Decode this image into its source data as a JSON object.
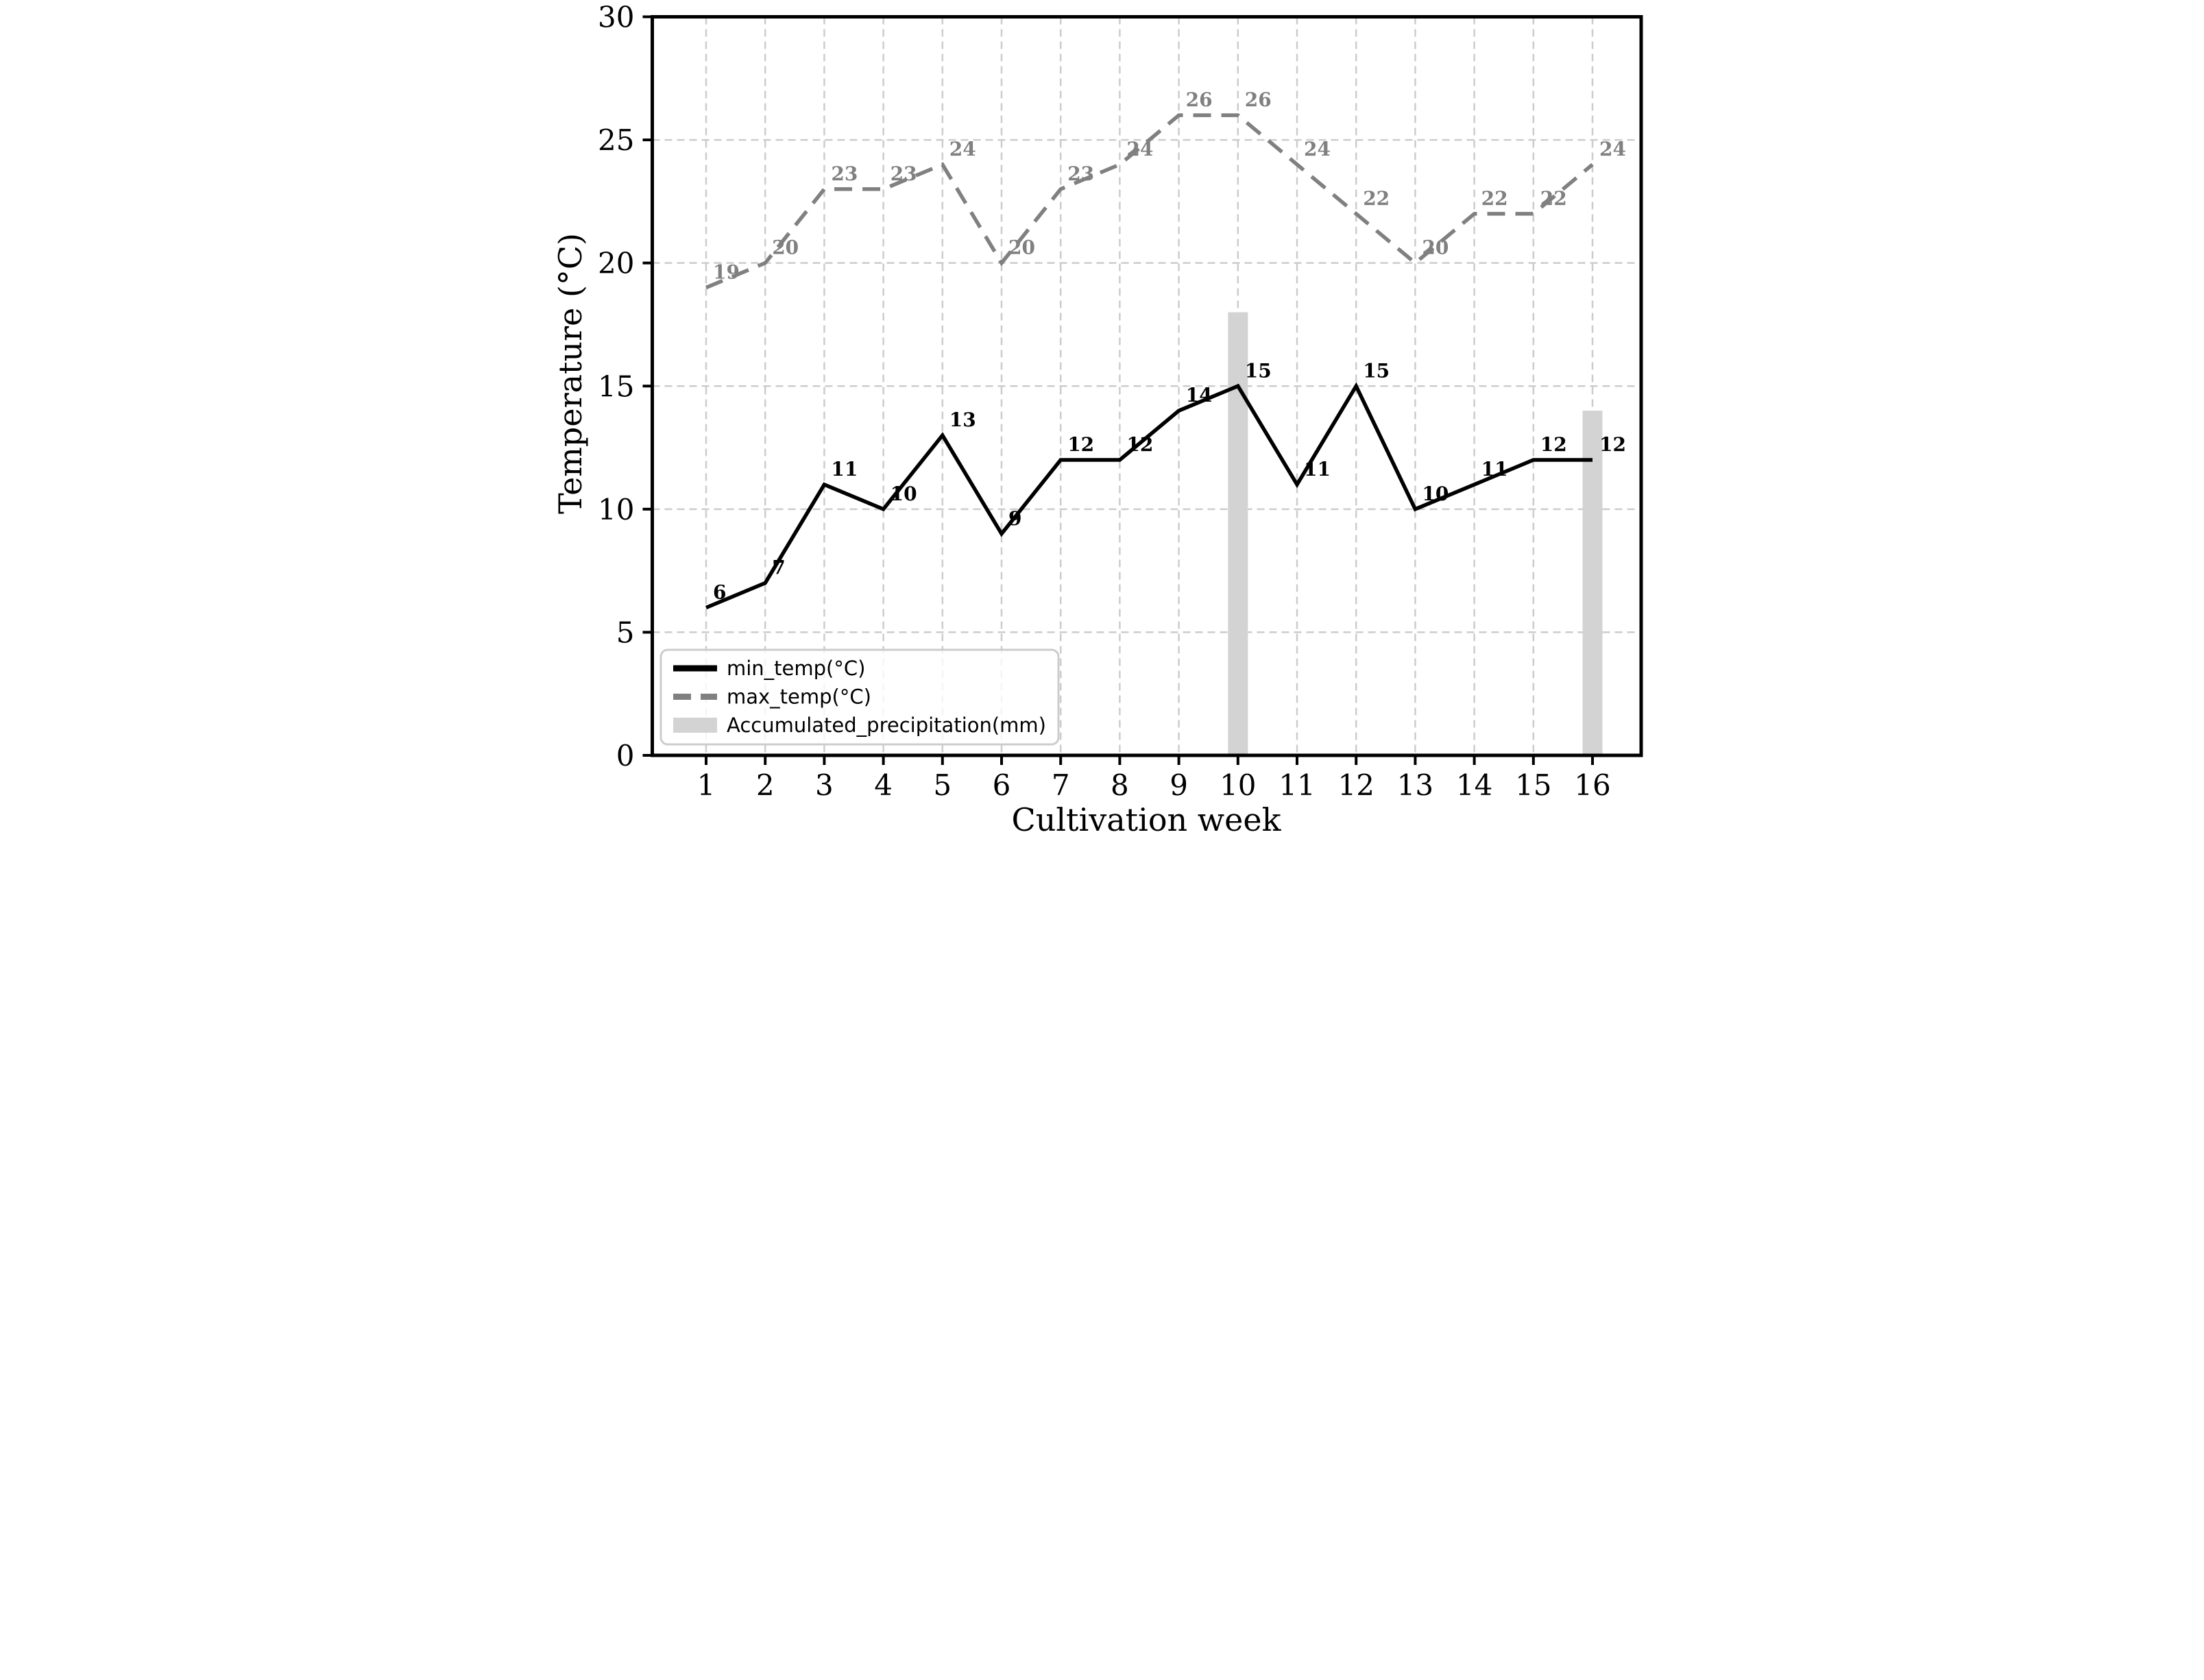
{
  "figure": {
    "background": "#ffffff",
    "spine_color": "#000000",
    "grid_color": "#cccccc",
    "tick_color": "#000000"
  },
  "chart_data": {
    "type": "line",
    "x": [
      1,
      2,
      3,
      4,
      5,
      6,
      7,
      8,
      9,
      10,
      11,
      12,
      13,
      14,
      15,
      16
    ],
    "xlabel": "Cultivation week",
    "ylabel": "Temperature (°C)",
    "ylim": [
      0,
      30
    ],
    "yticks": [
      0,
      5,
      10,
      15,
      20,
      25,
      30
    ],
    "grid": true,
    "legend_position": "lower-left",
    "series": [
      {
        "name": "min_temp(°C)",
        "type": "line",
        "linestyle": "solid",
        "color": "#000000",
        "label_color": "#000000",
        "values": [
          6,
          7,
          11,
          10,
          13,
          9,
          12,
          12,
          14,
          15,
          11,
          15,
          10,
          11,
          12,
          12
        ]
      },
      {
        "name": "max_temp(°C)",
        "type": "line",
        "linestyle": "dashed",
        "color": "#808080",
        "label_color": "#808080",
        "values": [
          19,
          20,
          23,
          23,
          24,
          20,
          23,
          24,
          26,
          26,
          24,
          22,
          20,
          22,
          22,
          24
        ]
      },
      {
        "name": "Accumulated_precipitation(mm)",
        "type": "bar",
        "color": "#d3d3d3",
        "values": [
          0,
          0,
          0,
          0,
          0,
          0,
          0,
          0,
          0,
          18,
          0,
          0,
          0,
          0,
          0,
          14
        ]
      }
    ]
  }
}
